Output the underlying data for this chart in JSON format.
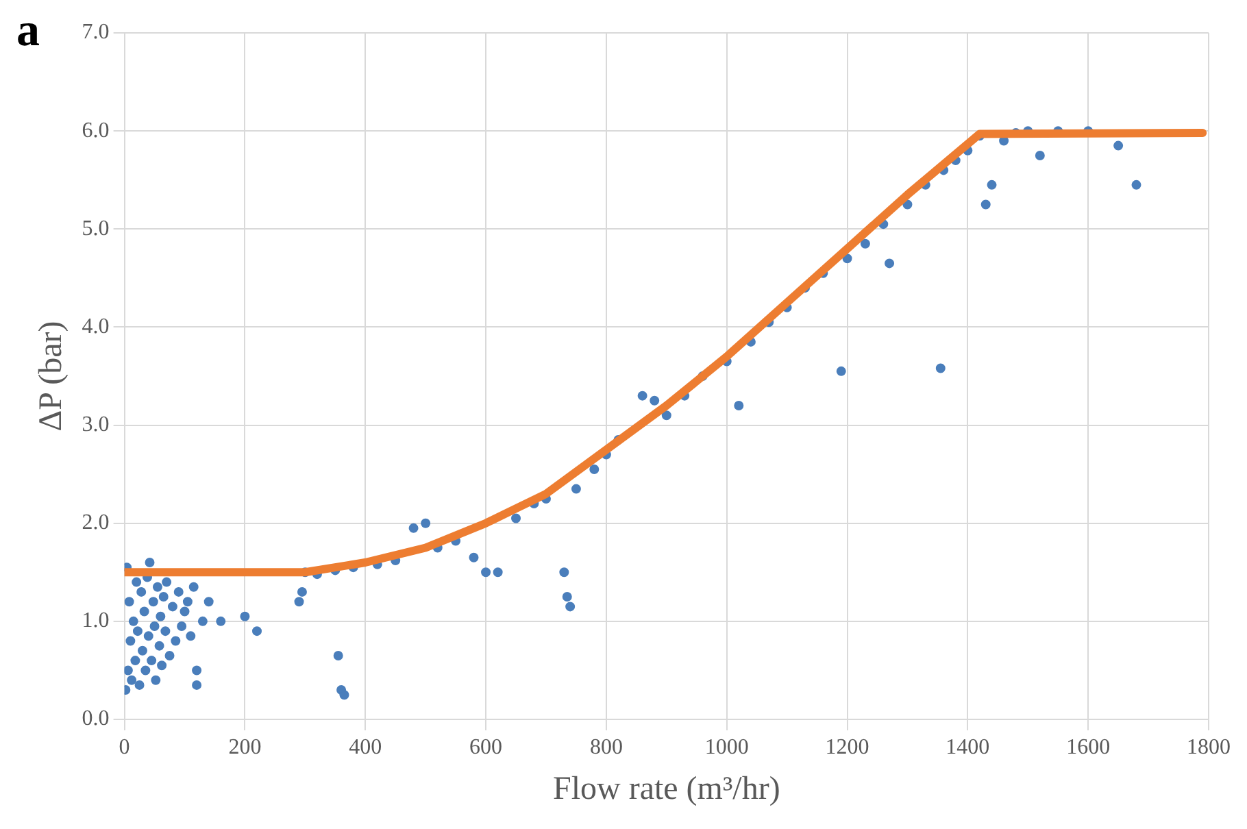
{
  "chart_data": {
    "type": "scatter",
    "title": "a",
    "xlabel": "Flow rate (m³/hr)",
    "ylabel": "ΔP (bar)",
    "xlim": [
      0,
      1800
    ],
    "xticks": [
      0,
      200,
      400,
      600,
      800,
      1000,
      1200,
      1400,
      1600,
      1800
    ],
    "ylim": [
      0,
      7
    ],
    "yticks": [
      {
        "value": 0,
        "label": "0.0"
      },
      {
        "value": 1,
        "label": "1.0"
      },
      {
        "value": 2,
        "label": "2.0"
      },
      {
        "value": 3,
        "label": "3.0"
      },
      {
        "value": 4,
        "label": "4.0"
      },
      {
        "value": 5,
        "label": "5.0"
      },
      {
        "value": 6,
        "label": "6.0"
      },
      {
        "value": 7,
        "label": "7.0"
      }
    ],
    "grid": true,
    "legend": false,
    "marker": "circle",
    "series": [
      {
        "type": "scatter",
        "color": "#4a7ebb",
        "x": [
          2,
          4,
          6,
          8,
          10,
          12,
          15,
          18,
          20,
          22,
          25,
          28,
          30,
          33,
          35,
          38,
          40,
          42,
          45,
          48,
          50,
          52,
          55,
          58,
          60,
          62,
          65,
          68,
          70,
          75,
          80,
          85,
          90,
          95,
          100,
          105,
          110,
          115,
          120,
          120,
          130,
          140,
          160,
          200,
          220,
          290,
          295,
          355,
          360,
          365,
          300,
          320,
          350,
          380,
          420,
          450,
          480,
          500,
          520,
          550,
          580,
          600,
          620,
          650,
          680,
          700,
          730,
          735,
          740,
          750,
          780,
          800,
          820,
          860,
          880,
          900,
          930,
          960,
          1000,
          1020,
          1040,
          1070,
          1100,
          1130,
          1160,
          1190,
          1200,
          1230,
          1260,
          1270,
          1300,
          1330,
          1360,
          1355,
          1380,
          1400,
          1420,
          1430,
          1440,
          1460,
          1480,
          1500,
          1520,
          1550,
          1600,
          1650,
          1680
        ],
        "values": [
          0.3,
          1.55,
          0.5,
          1.2,
          0.8,
          0.4,
          1.0,
          0.6,
          1.4,
          0.9,
          0.35,
          1.3,
          0.7,
          1.1,
          0.5,
          1.45,
          0.85,
          1.6,
          0.6,
          1.2,
          0.95,
          0.4,
          1.35,
          0.75,
          1.05,
          0.55,
          1.25,
          0.9,
          1.4,
          0.65,
          1.15,
          0.8,
          1.3,
          0.95,
          1.1,
          1.2,
          0.85,
          1.35,
          0.35,
          0.5,
          1.0,
          1.2,
          1.0,
          1.05,
          0.9,
          1.2,
          1.3,
          0.65,
          0.3,
          0.25,
          1.5,
          1.48,
          1.52,
          1.55,
          1.58,
          1.62,
          1.95,
          2.0,
          1.75,
          1.82,
          1.65,
          1.5,
          1.5,
          2.05,
          2.2,
          2.25,
          1.5,
          1.25,
          1.15,
          2.35,
          2.55,
          2.7,
          2.85,
          3.3,
          3.25,
          3.1,
          3.3,
          3.5,
          3.65,
          3.2,
          3.85,
          4.05,
          4.2,
          4.4,
          4.55,
          3.55,
          4.7,
          4.85,
          5.05,
          4.65,
          5.25,
          5.45,
          5.6,
          3.58,
          5.7,
          5.8,
          5.95,
          5.25,
          5.45,
          5.9,
          5.98,
          6.0,
          5.75,
          6.0,
          6.0,
          5.85,
          5.45
        ]
      },
      {
        "type": "line",
        "marker": "none",
        "color": "#ed7d31",
        "x": [
          0,
          300,
          400,
          500,
          600,
          700,
          800,
          900,
          1000,
          1100,
          1200,
          1300,
          1420,
          1790
        ],
        "values": [
          1.5,
          1.5,
          1.6,
          1.75,
          2.0,
          2.3,
          2.75,
          3.2,
          3.7,
          4.25,
          4.8,
          5.35,
          5.97,
          5.98
        ]
      }
    ]
  }
}
